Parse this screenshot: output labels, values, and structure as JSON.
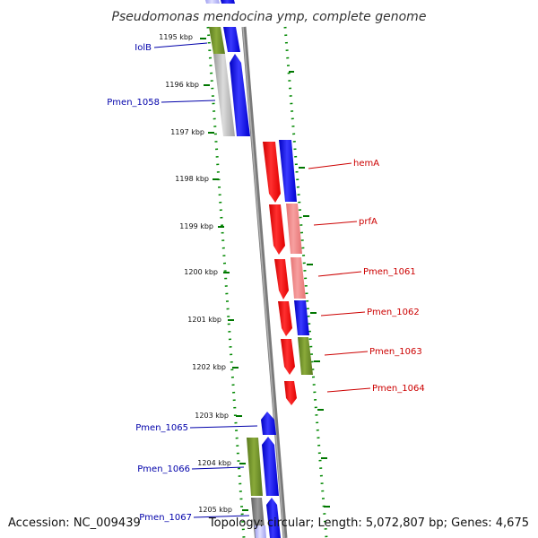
{
  "title": "Pseudomonas mendocina ymp, complete genome",
  "footer": {
    "accession": "Accession: NC_009439",
    "topology": "Topology: circular; Length: 5,072,807 bp; Genes: 4,675"
  },
  "ticks": [
    "1195 kbp",
    "1196 kbp",
    "1197 kbp",
    "1198 kbp",
    "1199 kbp",
    "1200 kbp",
    "1201 kbp",
    "1202 kbp",
    "1203 kbp",
    "1204 kbp",
    "1205 kbp"
  ],
  "genes_left": [
    "IolB",
    "Pmen_1058",
    "Pmen_1065",
    "Pmen_1066",
    "Pmen_1067"
  ],
  "genes_right": [
    "hemA",
    "prfA",
    "Pmen_1061",
    "Pmen_1062",
    "Pmen_1063",
    "Pmen_1064"
  ],
  "colors": {
    "reverse_strand_label": "#0000aa",
    "forward_strand_label": "#cc0000",
    "cog_blue": "#0000ff",
    "cog_red": "#ff0000",
    "cog_pink": "#f08080",
    "cog_olive": "#6b8e23",
    "cog_gray": "#aaaaaa",
    "tick_green": "#007700",
    "backbone": "#888888"
  }
}
